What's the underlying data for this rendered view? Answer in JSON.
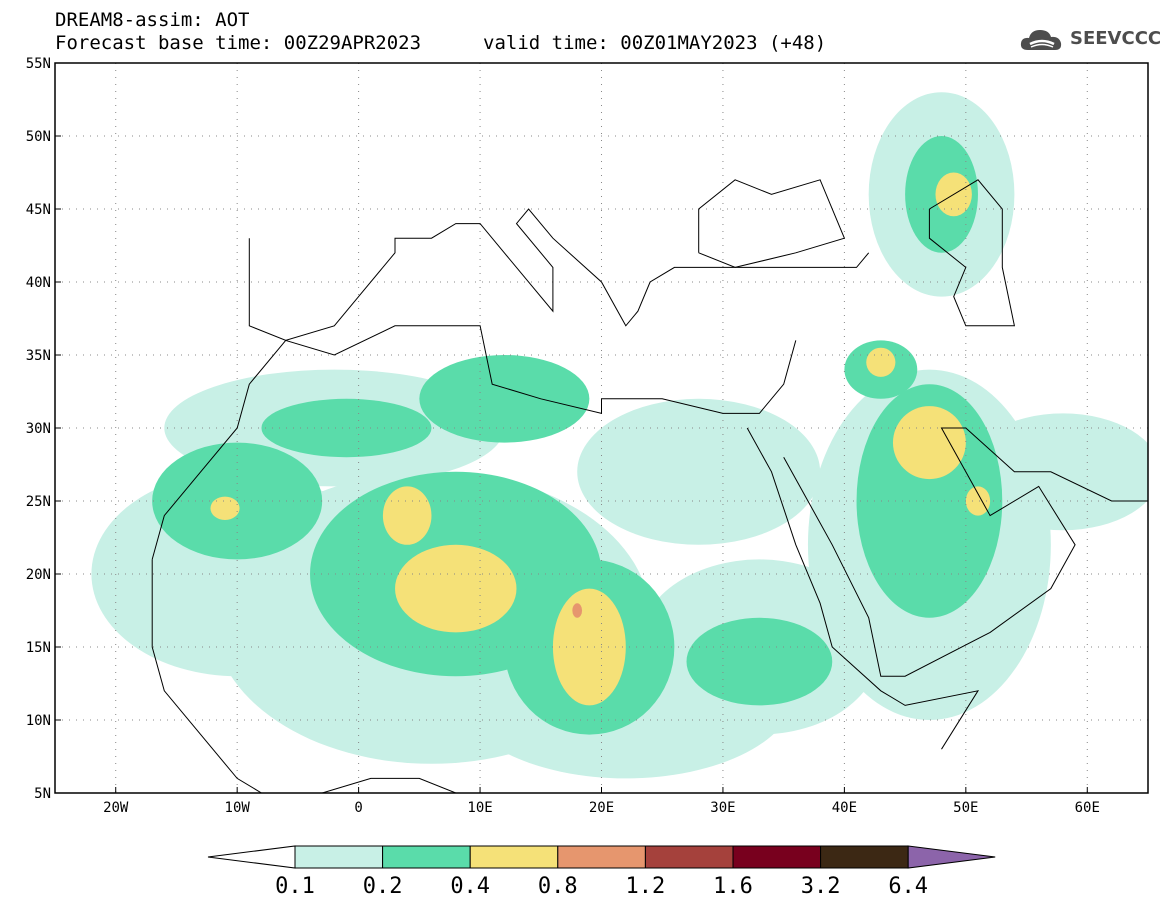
{
  "header": {
    "title_line1": "DREAM8-assim: AOT",
    "title_line2": "Forecast base time: 00Z29APR2023",
    "valid_time": "valid time: 00Z01MAY2023 (+48)"
  },
  "logo": {
    "text": "SEEVCCC",
    "icon": "cloud-icon"
  },
  "map": {
    "region": "North Africa, Europe and Middle East",
    "lon_range": [
      -25,
      65
    ],
    "lat_range": [
      5,
      55
    ],
    "lon_ticks": [
      {
        "value": -20,
        "label": "20W"
      },
      {
        "value": -10,
        "label": "10W"
      },
      {
        "value": 0,
        "label": "0"
      },
      {
        "value": 10,
        "label": "10E"
      },
      {
        "value": 20,
        "label": "20E"
      },
      {
        "value": 30,
        "label": "30E"
      },
      {
        "value": 40,
        "label": "40E"
      },
      {
        "value": 50,
        "label": "50E"
      },
      {
        "value": 60,
        "label": "60E"
      }
    ],
    "lat_ticks": [
      {
        "value": 5,
        "label": "5N"
      },
      {
        "value": 10,
        "label": "10N"
      },
      {
        "value": 15,
        "label": "15N"
      },
      {
        "value": 20,
        "label": "20N"
      },
      {
        "value": 25,
        "label": "25N"
      },
      {
        "value": 30,
        "label": "30N"
      },
      {
        "value": 35,
        "label": "35N"
      },
      {
        "value": 40,
        "label": "40N"
      },
      {
        "value": 45,
        "label": "45N"
      },
      {
        "value": 50,
        "label": "50N"
      },
      {
        "value": 55,
        "label": "55N"
      }
    ],
    "grid": "dotted"
  },
  "colorbar": {
    "levels": [
      "0.1",
      "0.2",
      "0.4",
      "0.8",
      "1.2",
      "1.6",
      "3.2",
      "6.4"
    ],
    "colors": [
      "#ffffff",
      "#c8f0e6",
      "#5adcaa",
      "#f5e178",
      "#e6966e",
      "#a5413c",
      "#78001e",
      "#3c2814",
      "#8c64aa"
    ]
  },
  "aot_field": {
    "level_colors": {
      "0.1": "#c8f0e6",
      "0.2": "#5adcaa",
      "0.4": "#f5e178",
      "0.8": "#e6966e"
    },
    "blobs": [
      {
        "level": "0.1",
        "center": [
          -10,
          20
        ],
        "radius": [
          12,
          7
        ]
      },
      {
        "level": "0.1",
        "center": [
          6,
          17
        ],
        "radius": [
          18,
          10
        ]
      },
      {
        "level": "0.1",
        "center": [
          22,
          12
        ],
        "radius": [
          14,
          6
        ]
      },
      {
        "level": "0.1",
        "center": [
          33,
          15
        ],
        "radius": [
          10,
          6
        ]
      },
      {
        "level": "0.1",
        "center": [
          -2,
          30
        ],
        "radius": [
          14,
          4
        ]
      },
      {
        "level": "0.1",
        "center": [
          28,
          27
        ],
        "radius": [
          10,
          5
        ]
      },
      {
        "level": "0.1",
        "center": [
          47,
          22
        ],
        "radius": [
          10,
          12
        ]
      },
      {
        "level": "0.1",
        "center": [
          48,
          46
        ],
        "radius": [
          6,
          7
        ]
      },
      {
        "level": "0.1",
        "center": [
          58,
          27
        ],
        "radius": [
          8,
          4
        ]
      },
      {
        "level": "0.2",
        "center": [
          -10,
          25
        ],
        "radius": [
          7,
          4
        ]
      },
      {
        "level": "0.2",
        "center": [
          8,
          20
        ],
        "radius": [
          12,
          7
        ]
      },
      {
        "level": "0.2",
        "center": [
          19,
          15
        ],
        "radius": [
          7,
          6
        ]
      },
      {
        "level": "0.2",
        "center": [
          33,
          14
        ],
        "radius": [
          6,
          3
        ]
      },
      {
        "level": "0.2",
        "center": [
          12,
          32
        ],
        "radius": [
          7,
          3
        ]
      },
      {
        "level": "0.2",
        "center": [
          -1,
          30
        ],
        "radius": [
          7,
          2
        ]
      },
      {
        "level": "0.2",
        "center": [
          47,
          25
        ],
        "radius": [
          6,
          8
        ]
      },
      {
        "level": "0.2",
        "center": [
          48,
          46
        ],
        "radius": [
          3,
          4
        ]
      },
      {
        "level": "0.2",
        "center": [
          43,
          34
        ],
        "radius": [
          3,
          2
        ]
      },
      {
        "level": "0.4",
        "center": [
          8,
          19
        ],
        "radius": [
          5,
          3
        ]
      },
      {
        "level": "0.4",
        "center": [
          4,
          24
        ],
        "radius": [
          2,
          2
        ]
      },
      {
        "level": "0.4",
        "center": [
          19,
          15
        ],
        "radius": [
          3,
          4
        ]
      },
      {
        "level": "0.4",
        "center": [
          47,
          29
        ],
        "radius": [
          3,
          2.5
        ]
      },
      {
        "level": "0.4",
        "center": [
          49,
          46
        ],
        "radius": [
          1.5,
          1.5
        ]
      },
      {
        "level": "0.4",
        "center": [
          -11,
          24.5
        ],
        "radius": [
          1.2,
          0.8
        ]
      },
      {
        "level": "0.4",
        "center": [
          43,
          34.5
        ],
        "radius": [
          1.2,
          1
        ]
      },
      {
        "level": "0.4",
        "center": [
          51,
          25
        ],
        "radius": [
          1,
          1
        ]
      },
      {
        "level": "0.8",
        "center": [
          18,
          17.5
        ],
        "radius": [
          0.4,
          0.5
        ]
      }
    ]
  },
  "coastlines": [
    {
      "name": "europe",
      "points": [
        [
          -9,
          43
        ],
        [
          -9,
          37
        ],
        [
          -6,
          36
        ],
        [
          -2,
          37
        ],
        [
          0,
          39
        ],
        [
          3,
          42
        ],
        [
          3,
          43
        ],
        [
          6,
          43
        ],
        [
          8,
          44
        ],
        [
          10,
          44
        ],
        [
          12,
          42
        ],
        [
          16,
          38
        ],
        [
          16,
          41
        ],
        [
          13,
          44
        ],
        [
          14,
          45
        ],
        [
          16,
          43
        ],
        [
          20,
          40
        ],
        [
          22,
          37
        ],
        [
          23,
          38
        ],
        [
          24,
          40
        ],
        [
          26,
          41
        ],
        [
          29,
          41
        ],
        [
          36,
          41
        ],
        [
          41,
          41
        ],
        [
          42,
          42
        ]
      ]
    },
    {
      "name": "north-africa",
      "points": [
        [
          -17,
          21
        ],
        [
          -16,
          24
        ],
        [
          -13,
          27
        ],
        [
          -10,
          30
        ],
        [
          -9,
          33
        ],
        [
          -6,
          36
        ],
        [
          -2,
          35
        ],
        [
          3,
          37
        ],
        [
          10,
          37
        ],
        [
          11,
          33
        ],
        [
          15,
          32
        ],
        [
          20,
          31
        ],
        [
          20,
          32
        ],
        [
          25,
          32
        ],
        [
          30,
          31
        ],
        [
          33,
          31
        ],
        [
          35,
          33
        ],
        [
          36,
          36
        ]
      ]
    },
    {
      "name": "west-africa",
      "points": [
        [
          -17,
          21
        ],
        [
          -17,
          15
        ],
        [
          -16,
          12
        ],
        [
          -13,
          9
        ],
        [
          -10,
          6
        ],
        [
          -8,
          5
        ],
        [
          -3,
          5
        ],
        [
          1,
          6
        ],
        [
          5,
          6
        ],
        [
          8,
          5
        ]
      ]
    },
    {
      "name": "red-sea-west",
      "points": [
        [
          32,
          30
        ],
        [
          34,
          27
        ],
        [
          36,
          22
        ],
        [
          38,
          18
        ],
        [
          39,
          15
        ],
        [
          43,
          12
        ],
        [
          45,
          11
        ],
        [
          51,
          12
        ],
        [
          48,
          8
        ]
      ]
    },
    {
      "name": "arabia",
      "points": [
        [
          35,
          28
        ],
        [
          39,
          22
        ],
        [
          42,
          17
        ],
        [
          43,
          13
        ],
        [
          45,
          13
        ],
        [
          52,
          16
        ],
        [
          57,
          19
        ],
        [
          59,
          22
        ],
        [
          56,
          26
        ],
        [
          52,
          24
        ],
        [
          50,
          27
        ],
        [
          48,
          30
        ],
        [
          50,
          30
        ],
        [
          54,
          27
        ],
        [
          57,
          27
        ],
        [
          62,
          25
        ],
        [
          65,
          25
        ]
      ]
    },
    {
      "name": "caspian",
      "points": [
        [
          47,
          45
        ],
        [
          51,
          47
        ],
        [
          53,
          45
        ],
        [
          53,
          41
        ],
        [
          54,
          37
        ],
        [
          50,
          37
        ],
        [
          49,
          39
        ],
        [
          50,
          41
        ],
        [
          47,
          43
        ],
        [
          47,
          45
        ]
      ]
    },
    {
      "name": "black-sea",
      "points": [
        [
          28,
          42
        ],
        [
          28,
          45
        ],
        [
          31,
          47
        ],
        [
          34,
          46
        ],
        [
          38,
          47
        ],
        [
          40,
          43
        ],
        [
          36,
          42
        ],
        [
          31,
          41
        ],
        [
          28,
          42
        ]
      ]
    }
  ]
}
